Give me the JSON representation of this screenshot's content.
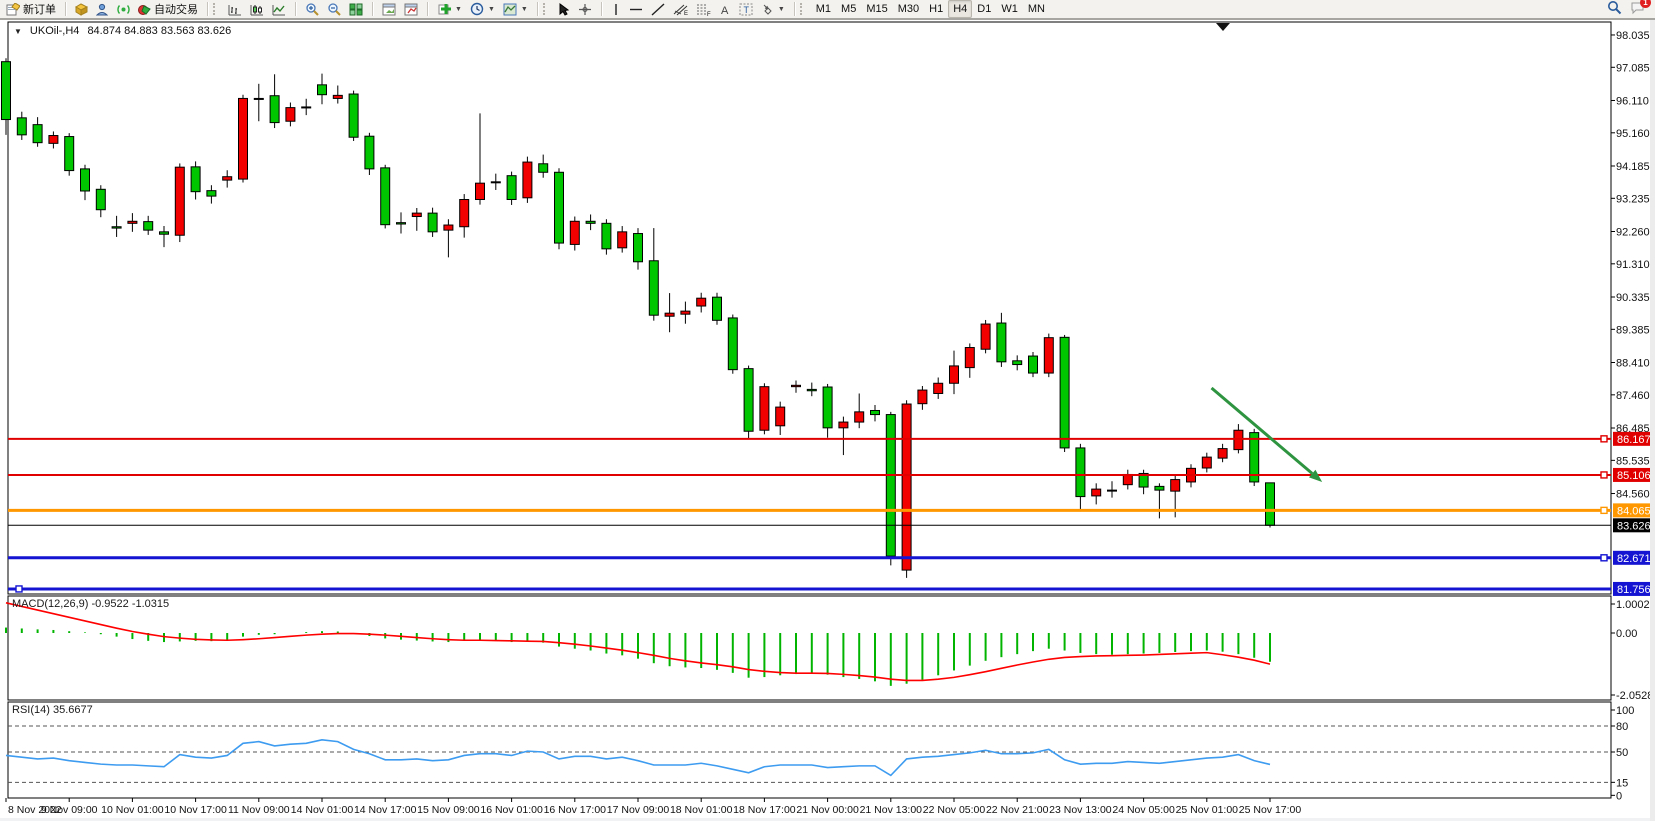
{
  "toolbar": {
    "active_timeframe": "H4",
    "groups": [
      {
        "name": "trade",
        "handle": false,
        "items": [
          {
            "name": "new-order-button",
            "icon": "neworder",
            "label": "新订单"
          }
        ]
      },
      {
        "name": "panels",
        "handle": false,
        "items": [
          {
            "name": "market-watch-button",
            "icon": "cube"
          },
          {
            "name": "data-window-button",
            "icon": "person"
          },
          {
            "name": "signals-button",
            "icon": "signal"
          },
          {
            "name": "autotrade-button",
            "icon": "autotrade",
            "label": "自动交易"
          }
        ]
      },
      {
        "name": "chart-type",
        "handle": true,
        "items": [
          {
            "name": "bar-chart-button",
            "icon": "bars"
          },
          {
            "name": "candlestick-button",
            "icon": "candles"
          },
          {
            "name": "line-chart-button",
            "icon": "linechart"
          }
        ]
      },
      {
        "name": "zoom",
        "handle": false,
        "items": [
          {
            "name": "zoom-in-button",
            "icon": "zoomin"
          },
          {
            "name": "zoom-out-button",
            "icon": "zoomout"
          },
          {
            "name": "tile-windows-button",
            "icon": "tile"
          }
        ]
      },
      {
        "name": "arrange",
        "handle": false,
        "items": [
          {
            "name": "auto-arrange-button",
            "icon": "winchart"
          },
          {
            "name": "cascade-button",
            "icon": "winchart2"
          }
        ]
      },
      {
        "name": "objects-add",
        "handle": false,
        "items": [
          {
            "name": "add-indicator-button",
            "icon": "plusgreen",
            "dropdown": true
          },
          {
            "name": "periods-button",
            "icon": "clock",
            "dropdown": true
          },
          {
            "name": "templates-button",
            "icon": "template",
            "dropdown": true
          }
        ]
      },
      {
        "name": "pointer",
        "handle": true,
        "items": [
          {
            "name": "cursor-button",
            "icon": "cursor"
          },
          {
            "name": "crosshair-button",
            "icon": "crosshair"
          }
        ]
      },
      {
        "name": "draw",
        "handle": false,
        "items": [
          {
            "name": "vertical-line-button",
            "icon": "vline"
          },
          {
            "name": "horizontal-line-button",
            "icon": "hline"
          },
          {
            "name": "trendline-button",
            "icon": "trend"
          },
          {
            "name": "equidistant-channel-button",
            "icon": "channel"
          },
          {
            "name": "fibonacci-button",
            "icon": "fibo"
          },
          {
            "name": "text-button",
            "icon": "textA"
          },
          {
            "name": "text-label-button",
            "icon": "labelT"
          },
          {
            "name": "arrows-button",
            "icon": "shapes",
            "dropdown": true
          }
        ]
      },
      {
        "name": "timeframes",
        "handle": true,
        "items": [
          {
            "name": "timeframe-m1",
            "label": "M1",
            "tf": true
          },
          {
            "name": "timeframe-m5",
            "label": "M5",
            "tf": true
          },
          {
            "name": "timeframe-m15",
            "label": "M15",
            "tf": true
          },
          {
            "name": "timeframe-m30",
            "label": "M30",
            "tf": true
          },
          {
            "name": "timeframe-h1",
            "label": "H1",
            "tf": true
          },
          {
            "name": "timeframe-h4",
            "label": "H4",
            "tf": true
          },
          {
            "name": "timeframe-d1",
            "label": "D1",
            "tf": true
          },
          {
            "name": "timeframe-w1",
            "label": "W1",
            "tf": true
          },
          {
            "name": "timeframe-mn",
            "label": "MN",
            "tf": true
          }
        ]
      }
    ],
    "right_items": [
      {
        "name": "search-button",
        "icon": "search"
      },
      {
        "name": "chat-button",
        "icon": "chat",
        "badge": "1"
      }
    ]
  },
  "window": {
    "symbol_title": "UKOil-,H4",
    "ohlc_display": "84.874 84.883 83.563 83.626",
    "dropdown_glyph": "▼"
  },
  "chart_data": {
    "type": "candlestick",
    "title": "UKOil-,H4 84.874 84.883 83.563 83.626",
    "up_color": "#f20000",
    "down_color": "#00c600",
    "price_axis_ticks": [
      "98.035",
      "97.085",
      "96.110",
      "95.160",
      "94.185",
      "93.235",
      "92.260",
      "91.310",
      "90.335",
      "89.385",
      "88.410",
      "87.460",
      "86.485",
      "85.535",
      "84.560"
    ],
    "price_axis_tick_values": [
      98.035,
      97.085,
      96.11,
      95.16,
      94.185,
      93.235,
      92.26,
      91.31,
      90.335,
      89.385,
      88.41,
      87.46,
      86.485,
      85.535,
      84.56
    ],
    "x_labels": [
      "8 Nov 2022",
      "9 Nov 09:00",
      "10 Nov 01:00",
      "10 Nov 17:00",
      "11 Nov 09:00",
      "14 Nov 01:00",
      "14 Nov 17:00",
      "15 Nov 09:00",
      "16 Nov 01:00",
      "16 Nov 17:00",
      "17 Nov 09:00",
      "18 Nov 01:00",
      "18 Nov 17:00",
      "21 Nov 00:00",
      "21 Nov 13:00",
      "22 Nov 05:00",
      "22 Nov 21:00",
      "23 Nov 13:00",
      "24 Nov 05:00",
      "25 Nov 01:00",
      "25 Nov 17:00"
    ],
    "bars_per_label": 4,
    "candles": [
      [
        97.25,
        97.35,
        95.1,
        95.55
      ],
      [
        95.6,
        95.78,
        94.95,
        95.1
      ],
      [
        95.4,
        95.62,
        94.75,
        94.87
      ],
      [
        94.85,
        95.2,
        94.7,
        95.08
      ],
      [
        95.05,
        95.15,
        93.9,
        94.05
      ],
      [
        94.1,
        94.22,
        93.18,
        93.45
      ],
      [
        93.5,
        93.62,
        92.68,
        92.9
      ],
      [
        92.4,
        92.72,
        92.1,
        92.36
      ],
      [
        92.5,
        92.8,
        92.25,
        92.56
      ],
      [
        92.55,
        92.72,
        92.16,
        92.3
      ],
      [
        92.25,
        92.42,
        91.8,
        92.18
      ],
      [
        92.15,
        94.26,
        91.95,
        94.15
      ],
      [
        94.16,
        94.32,
        93.2,
        93.43
      ],
      [
        93.46,
        93.62,
        93.08,
        93.3
      ],
      [
        93.77,
        94.06,
        93.55,
        93.87
      ],
      [
        93.8,
        96.28,
        93.7,
        96.17
      ],
      [
        96.17,
        96.6,
        95.5,
        96.17
      ],
      [
        96.25,
        96.88,
        95.3,
        95.46
      ],
      [
        95.5,
        96.05,
        95.35,
        95.9
      ],
      [
        95.9,
        96.16,
        95.68,
        95.92
      ],
      [
        96.57,
        96.9,
        96.0,
        96.28
      ],
      [
        96.17,
        96.55,
        96.02,
        96.26
      ],
      [
        96.3,
        96.4,
        94.92,
        95.03
      ],
      [
        95.06,
        95.16,
        93.92,
        94.1
      ],
      [
        94.13,
        94.22,
        92.35,
        92.46
      ],
      [
        92.52,
        92.82,
        92.2,
        92.48
      ],
      [
        92.7,
        92.95,
        92.28,
        92.8
      ],
      [
        92.8,
        92.96,
        92.1,
        92.25
      ],
      [
        92.3,
        92.62,
        91.5,
        92.45
      ],
      [
        92.4,
        93.36,
        92.08,
        93.2
      ],
      [
        93.2,
        95.73,
        93.05,
        93.68
      ],
      [
        93.7,
        93.96,
        93.48,
        93.72
      ],
      [
        93.9,
        94.02,
        93.04,
        93.2
      ],
      [
        93.25,
        94.46,
        93.1,
        94.3
      ],
      [
        94.25,
        94.52,
        93.84,
        94.0
      ],
      [
        94.0,
        94.12,
        91.74,
        91.92
      ],
      [
        91.88,
        92.7,
        91.7,
        92.56
      ],
      [
        92.56,
        92.76,
        92.3,
        92.5
      ],
      [
        92.5,
        92.62,
        91.58,
        91.75
      ],
      [
        91.78,
        92.42,
        91.64,
        92.25
      ],
      [
        92.2,
        92.36,
        91.14,
        91.37
      ],
      [
        91.4,
        92.36,
        89.64,
        89.8
      ],
      [
        89.77,
        90.45,
        89.3,
        89.86
      ],
      [
        89.83,
        90.2,
        89.55,
        89.92
      ],
      [
        90.07,
        90.46,
        89.88,
        90.3
      ],
      [
        90.33,
        90.46,
        89.52,
        89.65
      ],
      [
        89.72,
        89.82,
        88.08,
        88.2
      ],
      [
        88.23,
        88.32,
        86.15,
        86.39
      ],
      [
        86.42,
        87.8,
        86.3,
        87.7
      ],
      [
        86.55,
        87.26,
        86.28,
        87.1
      ],
      [
        87.7,
        87.88,
        87.52,
        87.74
      ],
      [
        87.62,
        87.82,
        87.42,
        87.58
      ],
      [
        87.69,
        87.78,
        86.2,
        86.49
      ],
      [
        86.49,
        86.82,
        85.69,
        86.66
      ],
      [
        86.66,
        87.5,
        86.48,
        86.96
      ],
      [
        87.0,
        87.16,
        86.68,
        86.88
      ],
      [
        86.88,
        86.96,
        82.45,
        82.72
      ],
      [
        82.31,
        87.3,
        82.08,
        87.19
      ],
      [
        87.2,
        87.72,
        87.02,
        87.6
      ],
      [
        87.5,
        87.97,
        87.34,
        87.8
      ],
      [
        87.8,
        88.76,
        87.48,
        88.31
      ],
      [
        88.26,
        88.97,
        87.96,
        88.85
      ],
      [
        88.8,
        89.66,
        88.68,
        89.54
      ],
      [
        89.57,
        89.87,
        88.28,
        88.43
      ],
      [
        88.46,
        88.62,
        88.18,
        88.35
      ],
      [
        88.6,
        88.72,
        87.98,
        88.1
      ],
      [
        88.1,
        89.26,
        87.98,
        89.14
      ],
      [
        89.15,
        89.22,
        85.78,
        85.9
      ],
      [
        85.9,
        86.02,
        84.03,
        84.47
      ],
      [
        84.49,
        84.86,
        84.24,
        84.69
      ],
      [
        84.66,
        84.92,
        84.44,
        84.66
      ],
      [
        84.82,
        85.26,
        84.68,
        85.12
      ],
      [
        85.15,
        85.26,
        84.54,
        84.75
      ],
      [
        84.77,
        84.86,
        83.83,
        84.66
      ],
      [
        84.63,
        85.12,
        83.86,
        84.97
      ],
      [
        84.9,
        85.42,
        84.74,
        85.3
      ],
      [
        85.31,
        85.76,
        85.18,
        85.63
      ],
      [
        85.6,
        86.02,
        85.48,
        85.88
      ],
      [
        85.85,
        86.6,
        85.74,
        86.42
      ],
      [
        86.35,
        86.46,
        84.78,
        84.9
      ],
      [
        84.874,
        84.883,
        83.563,
        83.626
      ]
    ],
    "horizontal_lines": [
      {
        "price": 86.167,
        "label": "86.167",
        "color": "#e00000",
        "width": 2,
        "handle": "right"
      },
      {
        "price": 85.106,
        "label": "85.106",
        "color": "#e00000",
        "width": 2,
        "handle": "right"
      },
      {
        "price": 84.065,
        "label": "84.065",
        "color": "#ff9800",
        "width": 3,
        "handle": "right"
      },
      {
        "price": 82.671,
        "label": "82.671",
        "color": "#1414d2",
        "width": 3,
        "handle": "right"
      },
      {
        "price": 81.756,
        "label": "81.756",
        "color": "#1414d2",
        "width": 3,
        "handle": "left"
      }
    ],
    "current_price": {
      "value": 83.626,
      "label": "83.626",
      "color": "#000000"
    },
    "arrow_annotation": {
      "from_bar": 76.3,
      "from_price": 87.66,
      "to_bar": 83.3,
      "to_price": 84.9,
      "color": "#2e9440"
    },
    "macd": {
      "display": "MACD(12,26,9) -0.9522 -1.0315",
      "scale_labels": [
        "1.0002",
        "0.00",
        "-2.0528"
      ],
      "scale_values": [
        1.0002,
        0.0,
        -2.0528
      ],
      "histogram_color": "#00b400",
      "signal_color": "#ff0000",
      "histogram": [
        0.18,
        0.15,
        0.12,
        0.1,
        0.06,
        0.02,
        -0.04,
        -0.12,
        -0.2,
        -0.26,
        -0.3,
        -0.28,
        -0.26,
        -0.27,
        -0.24,
        -0.12,
        -0.06,
        -0.04,
        0.0,
        0.03,
        0.06,
        0.05,
        -0.02,
        -0.1,
        -0.18,
        -0.22,
        -0.25,
        -0.28,
        -0.3,
        -0.26,
        -0.24,
        -0.26,
        -0.3,
        -0.28,
        -0.32,
        -0.45,
        -0.52,
        -0.58,
        -0.68,
        -0.74,
        -0.85,
        -1.0,
        -1.1,
        -1.14,
        -1.16,
        -1.22,
        -1.32,
        -1.48,
        -1.46,
        -1.4,
        -1.36,
        -1.32,
        -1.38,
        -1.46,
        -1.52,
        -1.6,
        -1.75,
        -1.68,
        -1.55,
        -1.4,
        -1.24,
        -1.08,
        -0.92,
        -0.8,
        -0.7,
        -0.6,
        -0.52,
        -0.58,
        -0.66,
        -0.7,
        -0.72,
        -0.7,
        -0.68,
        -0.66,
        -0.63,
        -0.6,
        -0.58,
        -0.62,
        -0.7,
        -0.82,
        -0.9522
      ],
      "signal": [
        1.0,
        0.88,
        0.76,
        0.64,
        0.52,
        0.4,
        0.28,
        0.16,
        0.05,
        -0.04,
        -0.12,
        -0.17,
        -0.21,
        -0.23,
        -0.24,
        -0.22,
        -0.19,
        -0.15,
        -0.11,
        -0.07,
        -0.04,
        -0.02,
        -0.02,
        -0.04,
        -0.07,
        -0.11,
        -0.15,
        -0.19,
        -0.22,
        -0.24,
        -0.24,
        -0.25,
        -0.26,
        -0.27,
        -0.28,
        -0.32,
        -0.37,
        -0.43,
        -0.5,
        -0.57,
        -0.65,
        -0.74,
        -0.84,
        -0.92,
        -0.99,
        -1.05,
        -1.12,
        -1.21,
        -1.27,
        -1.31,
        -1.33,
        -1.33,
        -1.34,
        -1.37,
        -1.41,
        -1.46,
        -1.53,
        -1.57,
        -1.57,
        -1.53,
        -1.47,
        -1.38,
        -1.28,
        -1.17,
        -1.06,
        -0.96,
        -0.87,
        -0.81,
        -0.78,
        -0.76,
        -0.75,
        -0.74,
        -0.73,
        -0.71,
        -0.69,
        -0.67,
        -0.65,
        -0.72,
        -0.8,
        -0.9,
        -1.0315
      ]
    },
    "rsi": {
      "display": "RSI(14) 35.6677",
      "scale_labels": [
        "100",
        "80",
        "50",
        "15",
        "0"
      ],
      "scale_values": [
        100,
        80,
        50,
        15,
        0
      ],
      "level_lines": [
        80,
        50,
        15
      ],
      "line_color": "#3d9bf0",
      "values": [
        46,
        44,
        42,
        43,
        40,
        38,
        36,
        35,
        35,
        34,
        33,
        47,
        44,
        43,
        46,
        60,
        62,
        57,
        59,
        60,
        64,
        62,
        53,
        48,
        41,
        41,
        42,
        40,
        41,
        46,
        48,
        48,
        46,
        51,
        50,
        42,
        45,
        45,
        42,
        44,
        40,
        35,
        35,
        35,
        37,
        34,
        30,
        26,
        33,
        35,
        35,
        35,
        32,
        33,
        34,
        34,
        23,
        42,
        44,
        45,
        47,
        49,
        52,
        48,
        48,
        49,
        53,
        41,
        36,
        37,
        37,
        39,
        38,
        37,
        39,
        41,
        43,
        44,
        47,
        40,
        35.6677
      ]
    }
  }
}
